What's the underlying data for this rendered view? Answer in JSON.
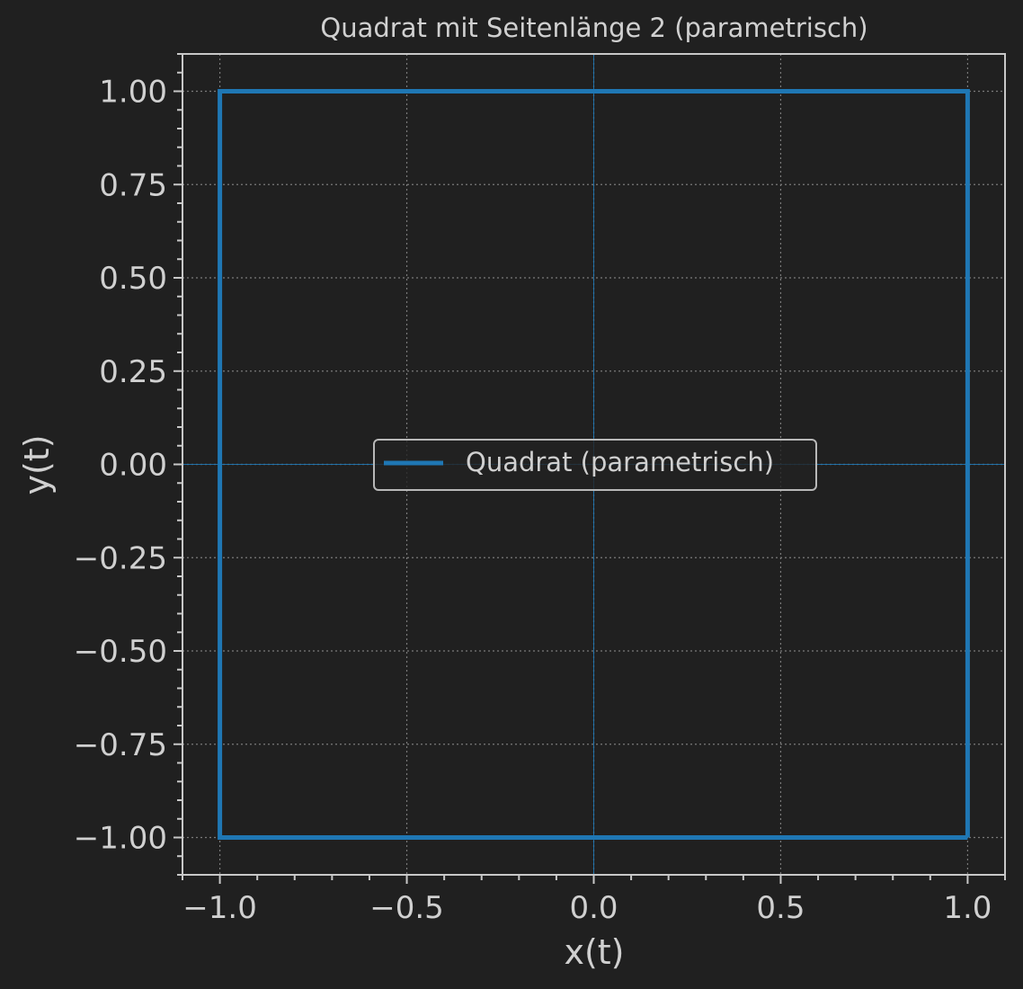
{
  "chart_data": {
    "type": "line",
    "title": "Quadrat mit Seitenlänge 2 (parametrisch)",
    "xlabel": "x(t)",
    "ylabel": "y(t)",
    "xlim": [
      -1.1,
      1.1
    ],
    "ylim": [
      -1.1,
      1.1
    ],
    "x_ticks": [
      -1.0,
      -0.5,
      0.0,
      0.5,
      1.0
    ],
    "x_tick_labels": [
      "−1.0",
      "−0.5",
      "0.0",
      "0.5",
      "1.0"
    ],
    "y_ticks": [
      1.0,
      0.75,
      0.5,
      0.25,
      0.0,
      -0.25,
      -0.5,
      -0.75,
      -1.0
    ],
    "y_tick_labels": [
      "1.00",
      "0.75",
      "0.50",
      "0.25",
      "0.00",
      "−0.25",
      "−0.50",
      "−0.75",
      "−1.00"
    ],
    "grid": true,
    "legend_position": "center",
    "series": [
      {
        "name": "Quadrat (parametrisch)",
        "color": "#1f77b4",
        "x": [
          1,
          1,
          -1,
          -1,
          1
        ],
        "y": [
          -1,
          1,
          1,
          -1,
          -1
        ]
      }
    ],
    "reference_lines": {
      "x": 0,
      "y": 0,
      "color": "#1f77b4"
    },
    "colors": {
      "background": "#202020",
      "axes": "#c8c8c8",
      "grid": "#7a7a7a",
      "text": "#d0d0d0"
    }
  }
}
